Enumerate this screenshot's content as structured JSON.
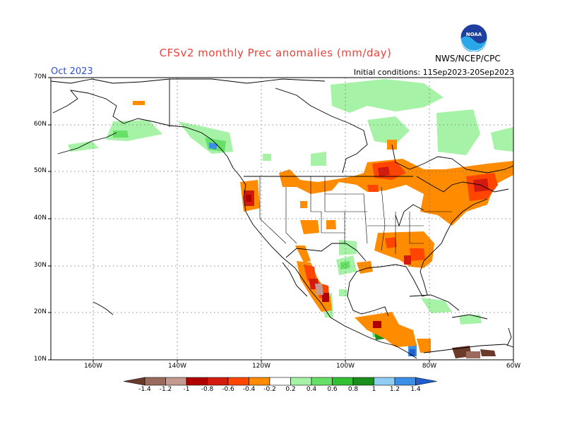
{
  "header": {
    "title": "CFSv2 monthly Prec anomalies (mm/day)",
    "month": "Oct 2023",
    "initial_conditions": "Initial conditions: 11Sep2023-20Sep2023",
    "agency": "NWS/NCEP/CPC",
    "logo_text": "NOAA"
  },
  "axes": {
    "lat_labels": [
      "70N",
      "60N",
      "50N",
      "40N",
      "30N",
      "20N",
      "10N"
    ],
    "lon_labels": [
      "160W",
      "140W",
      "120W",
      "100W",
      "80W",
      "60W"
    ]
  },
  "colorbar": {
    "labels": [
      "-1.4",
      "-1.2",
      "-1",
      "-0.8",
      "-0.6",
      "-0.4",
      "-0.2",
      "0.2",
      "0.4",
      "0.6",
      "0.8",
      "1",
      "1.2",
      "1.4"
    ],
    "colors": [
      "#6b3a2a",
      "#9c6a5c",
      "#c49a90",
      "#b00000",
      "#d41a0f",
      "#ff4500",
      "#ff8c00",
      "#ffffff",
      "#a6f2a6",
      "#66e066",
      "#33c033",
      "#1a8f1a",
      "#8fcdf2",
      "#3c8fe6",
      "#1f5fd0"
    ]
  }
}
